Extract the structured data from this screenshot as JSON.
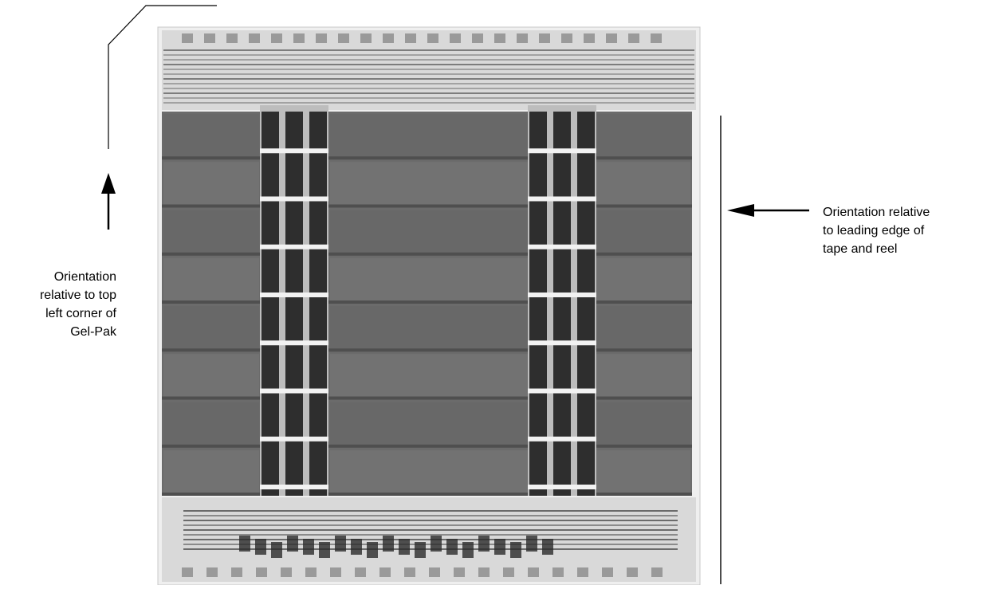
{
  "figure": {
    "left_caption": {
      "lines": [
        "Orientation",
        "relative to top",
        "left corner of",
        "Gel-Pak"
      ]
    },
    "right_caption": {
      "lines": [
        "Orientation relative",
        "to leading edge of",
        "tape and reel"
      ]
    },
    "die_photo": {
      "description_icon": "die-micrograph",
      "colors": {
        "array": "#6b6b6b",
        "array_dark": "#4f4f4f",
        "periphery": "#d9d9d9",
        "bus": "#2e2e2e",
        "frame": "#efefef"
      },
      "array_rows": 8,
      "array_blocks_per_row": 3
    }
  }
}
